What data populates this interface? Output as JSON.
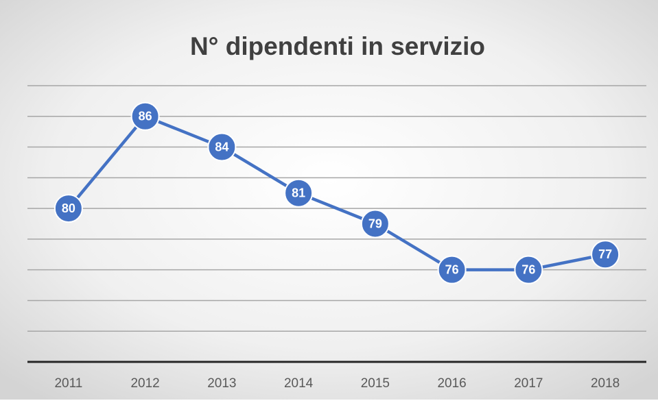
{
  "chart_data": {
    "type": "line",
    "title": "N° dipendenti in servizio",
    "categories": [
      "2011",
      "2012",
      "2013",
      "2014",
      "2015",
      "2016",
      "2017",
      "2018"
    ],
    "series": [
      {
        "name": "N° dipendenti",
        "color": "#4472c4",
        "values": [
          80,
          86,
          84,
          81,
          79,
          76,
          76,
          77
        ]
      }
    ],
    "ylim": [
      70,
      88
    ],
    "yticks": [
      70,
      72,
      74,
      76,
      78,
      80,
      82,
      84,
      86,
      88
    ],
    "grid": true,
    "data_labels": true
  }
}
